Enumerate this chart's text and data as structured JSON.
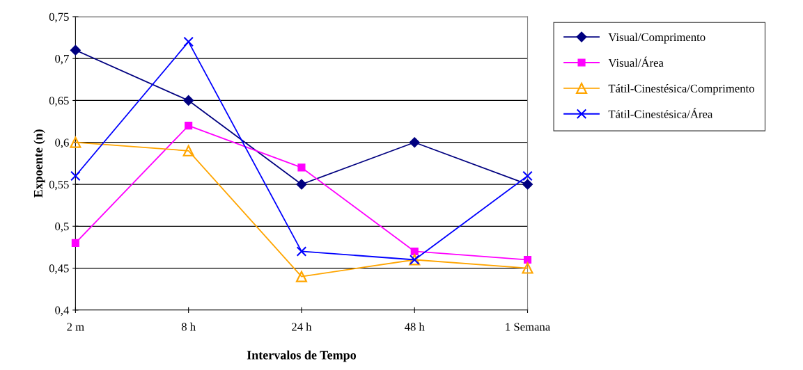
{
  "chart_data": {
    "type": "line",
    "xlabel": "Intervalos de Tempo",
    "ylabel": "Expoente (n)",
    "categories": [
      "2 m",
      "8 h",
      "24 h",
      "48 h",
      "1 Semana"
    ],
    "series": [
      {
        "name": "Visual/Comprimento",
        "color": "#000080",
        "marker": "diamond",
        "values": [
          0.71,
          0.65,
          0.55,
          0.6,
          0.55
        ]
      },
      {
        "name": "Visual/Área",
        "color": "#ff00ff",
        "marker": "square",
        "values": [
          0.48,
          0.62,
          0.57,
          0.47,
          0.46
        ]
      },
      {
        "name": "Tátil-Cinestésica/Comprimento",
        "color": "#ffa500",
        "marker": "triangle",
        "values": [
          0.6,
          0.59,
          0.44,
          0.46,
          0.45
        ]
      },
      {
        "name": "Tátil-Cinestésica/Área",
        "color": "#0000ff",
        "marker": "cross",
        "values": [
          0.56,
          0.72,
          0.47,
          0.46,
          0.56
        ]
      }
    ],
    "ylim": [
      0.4,
      0.75
    ],
    "yticks": [
      {
        "value": 0.4,
        "label": "0,4"
      },
      {
        "value": 0.45,
        "label": "0,45"
      },
      {
        "value": 0.5,
        "label": "0,5"
      },
      {
        "value": 0.55,
        "label": "0,55"
      },
      {
        "value": 0.6,
        "label": "0,6"
      },
      {
        "value": 0.65,
        "label": "0,65"
      },
      {
        "value": 0.7,
        "label": "0,7"
      },
      {
        "value": 0.75,
        "label": "0,75"
      }
    ],
    "grid": "y",
    "legend": "top right",
    "line_style": "solid"
  }
}
